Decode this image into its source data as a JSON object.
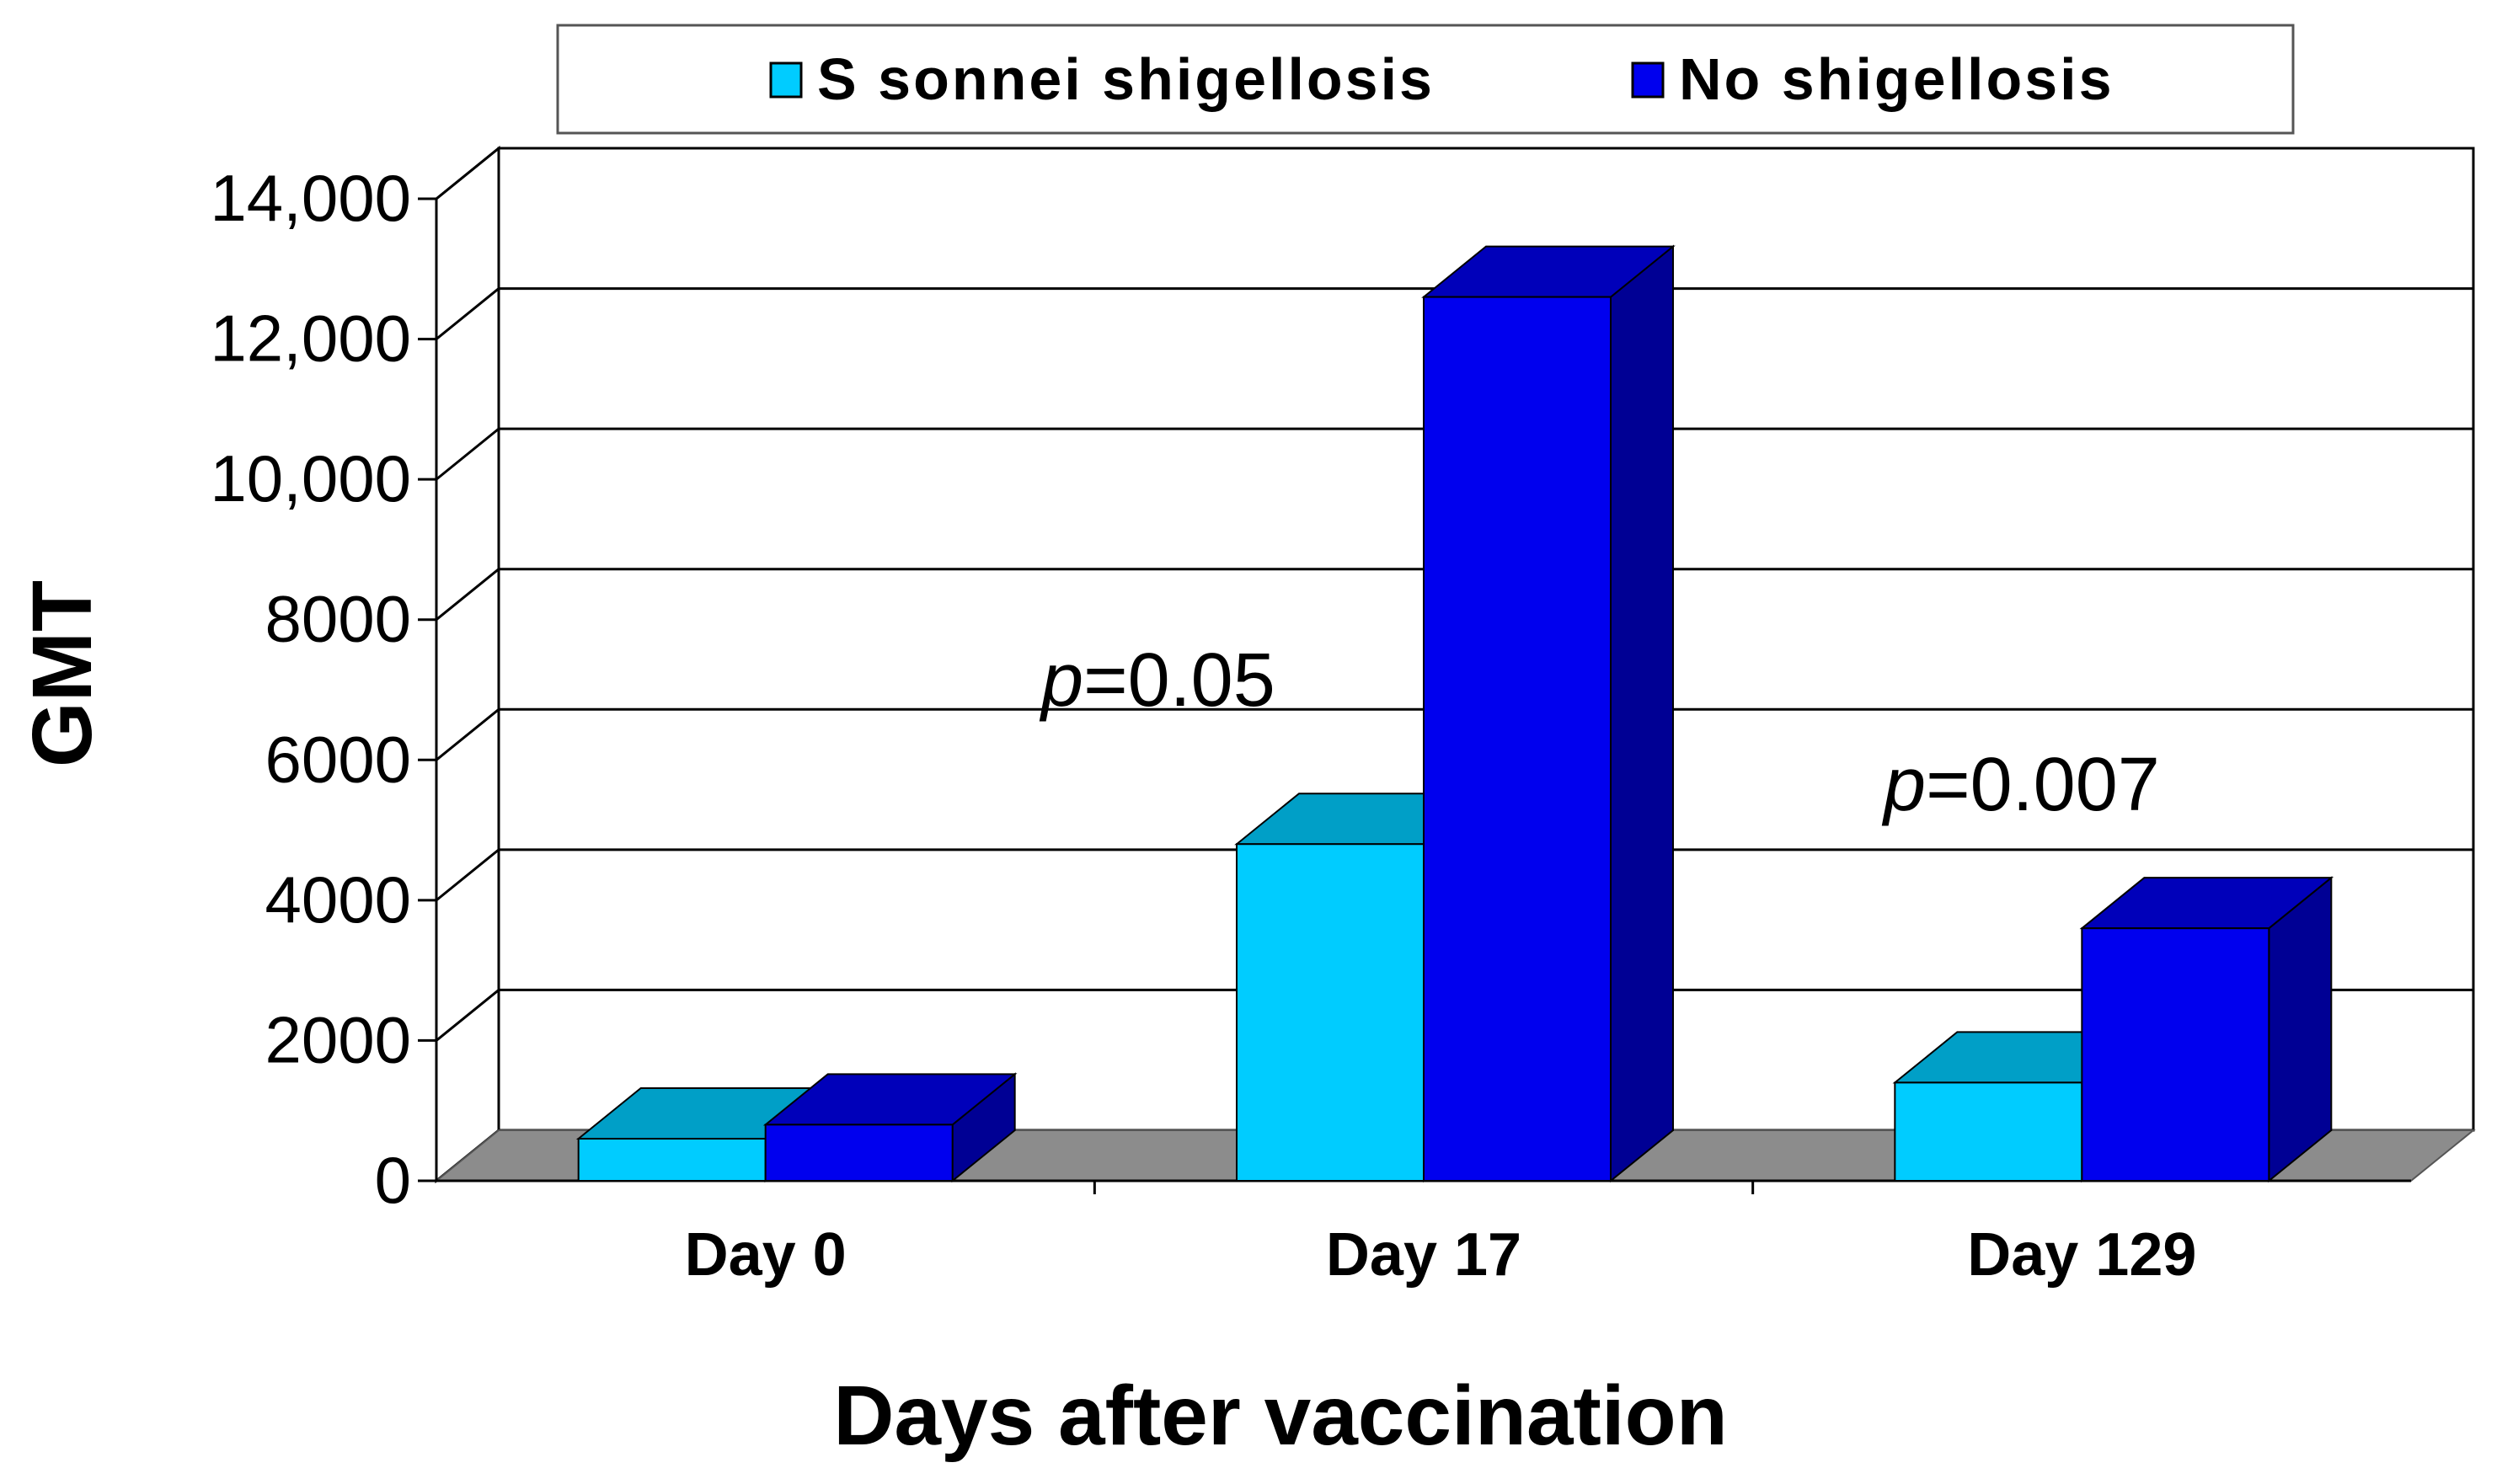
{
  "chart_data": {
    "type": "bar",
    "style": "3d-clustered",
    "categories": [
      "Day 0",
      "Day 17",
      "Day 129"
    ],
    "series": [
      {
        "name": "S sonnei shigellosis",
        "values": [
          600,
          4800,
          1400
        ],
        "color": "#00ccff"
      },
      {
        "name": "No shigellosis",
        "values": [
          800,
          12600,
          3600
        ],
        "color": "#0000ee"
      }
    ],
    "xlabel": "Days after vaccination",
    "ylabel": "GMT",
    "ylim": [
      0,
      14000
    ],
    "yticks": [
      0,
      2000,
      4000,
      6000,
      8000,
      10000,
      12000,
      14000
    ],
    "ytick_labels": [
      "0",
      "2000",
      "4000",
      "6000",
      "8000",
      "10,000",
      "12,000",
      "14,000"
    ],
    "grid": true,
    "legend_position": "top",
    "annotations": [
      {
        "category": "Day 17",
        "p_symbol": "p",
        "text": "=0.05"
      },
      {
        "category": "Day 129",
        "p_symbol": "p",
        "text": "=0.007"
      }
    ]
  }
}
